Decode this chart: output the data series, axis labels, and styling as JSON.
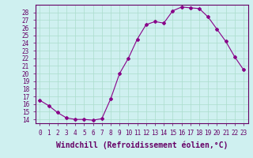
{
  "hours": [
    0,
    1,
    2,
    3,
    4,
    5,
    6,
    7,
    8,
    9,
    10,
    11,
    12,
    13,
    14,
    15,
    16,
    17,
    18,
    19,
    20,
    21,
    22,
    23
  ],
  "values": [
    16.5,
    15.8,
    14.9,
    14.2,
    14.0,
    14.0,
    13.9,
    14.1,
    16.7,
    20.0,
    22.0,
    24.5,
    26.4,
    26.8,
    26.6,
    28.2,
    28.7,
    28.6,
    28.5,
    27.4,
    25.8,
    24.2,
    22.2,
    20.5
  ],
  "line_color": "#880088",
  "marker": "D",
  "marker_size": 2.0,
  "bg_color": "#cff0f0",
  "grid_color": "#aaddcc",
  "xlabel": "Windchill (Refroidissement éolien,°C)",
  "ylim": [
    13.5,
    29.0
  ],
  "yticks": [
    14,
    15,
    16,
    17,
    18,
    19,
    20,
    21,
    22,
    23,
    24,
    25,
    26,
    27,
    28
  ],
  "xticks": [
    0,
    1,
    2,
    3,
    4,
    5,
    6,
    7,
    8,
    9,
    10,
    11,
    12,
    13,
    14,
    15,
    16,
    17,
    18,
    19,
    20,
    21,
    22,
    23
  ],
  "tick_fontsize": 5.5,
  "xlabel_fontsize": 7.0,
  "spine_color": "#660066",
  "linewidth": 0.8
}
